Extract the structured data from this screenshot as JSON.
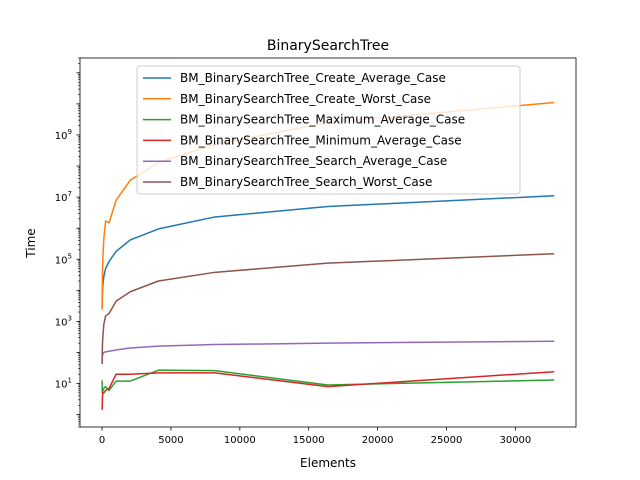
{
  "chart_data": {
    "type": "line",
    "title": "BinarySearchTree",
    "xlabel": "Elements",
    "ylabel": "Time",
    "xlim": [
      -1600,
      34400
    ],
    "ylim": [
      0.4,
      300000000000
    ],
    "yscale": "log",
    "x_ticks": [
      0,
      5000,
      10000,
      15000,
      20000,
      25000,
      30000
    ],
    "x_tick_labels": [
      "0",
      "5000",
      "10000",
      "15000",
      "20000",
      "25000",
      "30000"
    ],
    "y_ticks": [
      10,
      1000,
      100000,
      10000000,
      1000000000
    ],
    "y_tick_labels": [
      {
        "base": "10",
        "exp": "1"
      },
      {
        "base": "10",
        "exp": "3"
      },
      {
        "base": "10",
        "exp": "5"
      },
      {
        "base": "10",
        "exp": "7"
      },
      {
        "base": "10",
        "exp": "9"
      }
    ],
    "grid": false,
    "legend_position": "top-center",
    "x": [
      8,
      16,
      32,
      64,
      128,
      256,
      512,
      1024,
      2048,
      4096,
      8192,
      16384,
      32768
    ],
    "series": [
      {
        "name": "BM_BinarySearchTree_Create_Average_Case",
        "color": "#1f77b4",
        "values": [
          3000,
          5000,
          9000,
          16000,
          28000,
          50000,
          85000,
          180000,
          420000,
          950000,
          2300000,
          5000000,
          11000000
        ]
      },
      {
        "name": "BM_BinarySearchTree_Create_Worst_Case",
        "color": "#ff7f0e",
        "values": [
          2500,
          10000,
          40000,
          120000,
          450000,
          1700000,
          1500000,
          8000000,
          35000000,
          130000000,
          500000000,
          2500000000,
          11000000000
        ]
      },
      {
        "name": "BM_BinarySearchTree_Maximum_Average_Case",
        "color": "#2ca02c",
        "values": [
          12,
          5,
          5,
          6,
          7,
          8,
          6,
          12,
          12,
          27,
          26,
          9,
          13
        ]
      },
      {
        "name": "BM_BinarySearchTree_Minimum_Average_Case",
        "color": "#d62728",
        "values": [
          1.5,
          2,
          4,
          5,
          5,
          6,
          7,
          20,
          20,
          22,
          22,
          8,
          24
        ]
      },
      {
        "name": "BM_BinarySearchTree_Search_Average_Case",
        "color": "#9467bd",
        "values": [
          50,
          65,
          80,
          90,
          100,
          105,
          110,
          120,
          140,
          160,
          180,
          200,
          230
        ]
      },
      {
        "name": "BM_BinarySearchTree_Search_Worst_Case",
        "color": "#8c564b",
        "values": [
          45,
          100,
          200,
          350,
          800,
          1500,
          1800,
          4500,
          9000,
          20000,
          38000,
          75000,
          150000
        ]
      }
    ]
  }
}
